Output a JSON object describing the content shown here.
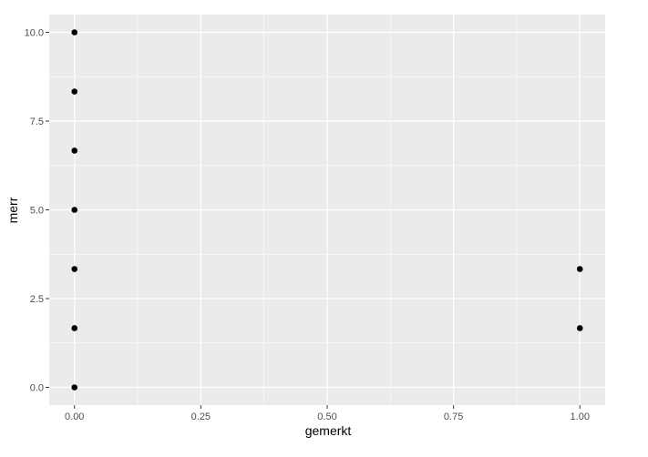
{
  "chart_data": {
    "type": "scatter",
    "xlabel": "gemerkt",
    "ylabel": "merr",
    "xlim": [
      -0.05,
      1.05
    ],
    "ylim": [
      -0.5,
      10.5
    ],
    "x_ticks": [
      0,
      0.25,
      0.5,
      0.75,
      1
    ],
    "x_tick_labels": [
      "0.00",
      "0.25",
      "0.50",
      "0.75",
      "1.00"
    ],
    "y_ticks": [
      0,
      2.5,
      5,
      7.5,
      10
    ],
    "y_tick_labels": [
      "0.0",
      "2.5",
      "5.0",
      "7.5",
      "10.0"
    ],
    "grid": true,
    "colors": {
      "panel": "#ebebeb",
      "grid": "#ffffff",
      "point": "#000000",
      "tick": "#333333"
    },
    "points": [
      {
        "x": 0,
        "y": 10
      },
      {
        "x": 0,
        "y": 8.333
      },
      {
        "x": 0,
        "y": 6.667
      },
      {
        "x": 0,
        "y": 5
      },
      {
        "x": 0,
        "y": 3.333
      },
      {
        "x": 0,
        "y": 1.667
      },
      {
        "x": 0,
        "y": 0
      },
      {
        "x": 1,
        "y": 3.333
      },
      {
        "x": 1,
        "y": 1.667
      }
    ]
  }
}
